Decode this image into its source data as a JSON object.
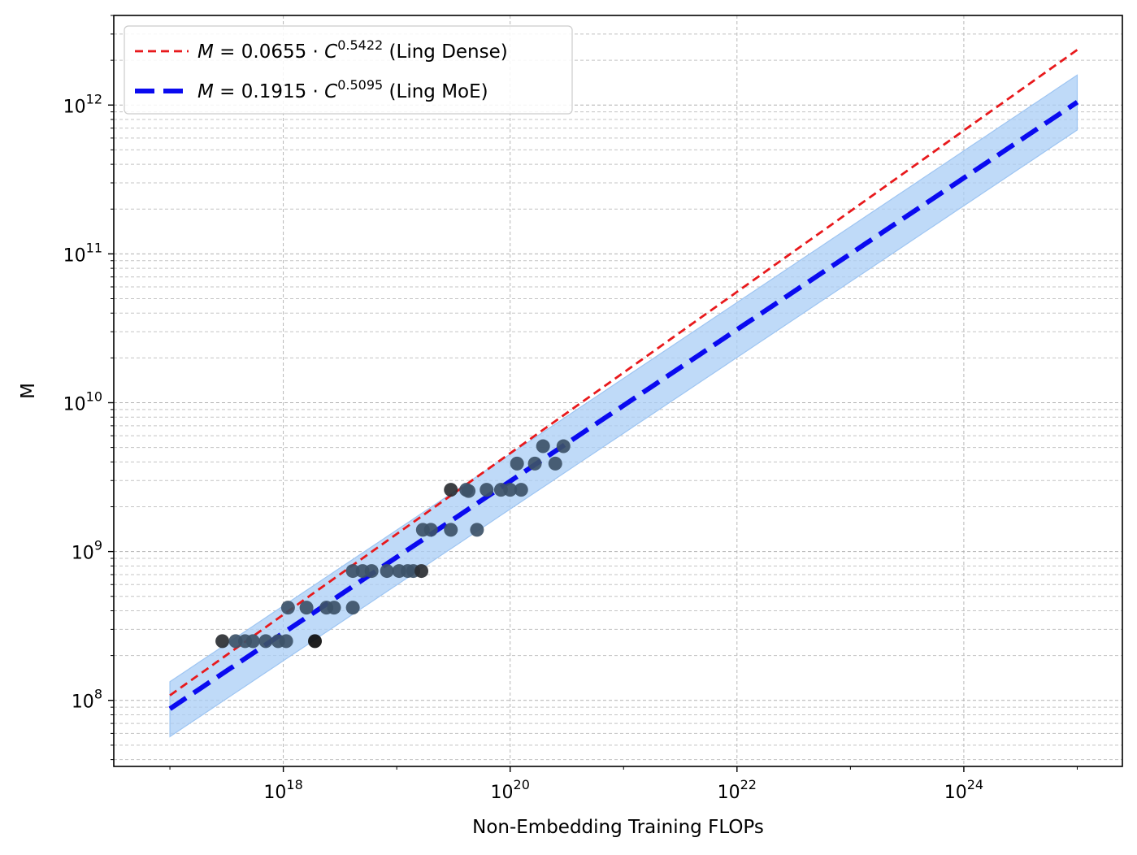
{
  "chart_data": {
    "type": "scatter",
    "xlabel": "Non-Embedding Training FLOPs",
    "ylabel": "M",
    "xscale": "log",
    "yscale": "log",
    "xlim": [
      3.2e+16,
      2.5e+25
    ],
    "ylim": [
      36000000.0,
      4000000000000.0
    ],
    "xticks": [
      {
        "value": 1e+18,
        "base": "10",
        "exp": "18"
      },
      {
        "value": 1e+20,
        "base": "10",
        "exp": "20"
      },
      {
        "value": 1e+22,
        "base": "10",
        "exp": "22"
      },
      {
        "value": 1e+24,
        "base": "10",
        "exp": "24"
      }
    ],
    "yticks": [
      {
        "value": 100000000.0,
        "base": "10",
        "exp": "8"
      },
      {
        "value": 1000000000.0,
        "base": "10",
        "exp": "9"
      },
      {
        "value": 10000000000.0,
        "base": "10",
        "exp": "10"
      },
      {
        "value": 100000000000.0,
        "base": "10",
        "exp": "11"
      },
      {
        "value": 1000000000000.0,
        "base": "10",
        "exp": "12"
      }
    ],
    "grid": true,
    "legend_position": "top-left",
    "series": [
      {
        "kind": "line",
        "name": "M = 0.0655 · C^0.5422 (Ling Dense)",
        "legend": {
          "lhs": "M",
          "eq": " = 0.0655 · ",
          "var": "C",
          "exp": "0.5422",
          "suffix": " (Ling Dense)"
        },
        "coef": 0.0655,
        "exponent": 0.5422,
        "x_range": [
          1e+17,
          1e+25
        ],
        "color": "#e8191c",
        "style": "dashed"
      },
      {
        "kind": "line",
        "name": "M = 0.1915 · C^0.5095 (Ling MoE)",
        "legend": {
          "lhs": "M",
          "eq": " = 0.1915 · ",
          "var": "C",
          "exp": "0.5095",
          "suffix": " (Ling MoE)"
        },
        "coef": 0.1915,
        "exponent": 0.5095,
        "x_range": [
          1e+17,
          1e+25
        ],
        "color": "#0a0af0",
        "style": "dashed-thick",
        "band": {
          "lower_factor": 0.65,
          "upper_factor": 1.52,
          "color": "#a9cdf5"
        }
      }
    ],
    "points": [
      {
        "x": 2.9e+17,
        "y": 250000000.0,
        "color": "#2b2f33"
      },
      {
        "x": 3.8e+17,
        "y": 250000000.0,
        "color": "#3d5268"
      },
      {
        "x": 4.6e+17,
        "y": 250000000.0,
        "color": "#3d5268"
      },
      {
        "x": 5.4e+17,
        "y": 250000000.0,
        "color": "#3d5268"
      },
      {
        "x": 7e+17,
        "y": 250000000.0,
        "color": "#3d5268"
      },
      {
        "x": 9e+17,
        "y": 250000000.0,
        "color": "#3d5268"
      },
      {
        "x": 1.06e+18,
        "y": 250000000.0,
        "color": "#3d5268"
      },
      {
        "x": 1.9e+18,
        "y": 250000000.0,
        "color": "#0c0c0c"
      },
      {
        "x": 1.1e+18,
        "y": 420000000.0,
        "color": "#3d5268"
      },
      {
        "x": 1.6e+18,
        "y": 420000000.0,
        "color": "#3d5268"
      },
      {
        "x": 2.4e+18,
        "y": 420000000.0,
        "color": "#3d5268"
      },
      {
        "x": 2.8e+18,
        "y": 420000000.0,
        "color": "#3d5268"
      },
      {
        "x": 4.1e+18,
        "y": 420000000.0,
        "color": "#3d5268"
      },
      {
        "x": 4.1e+18,
        "y": 740000000.0,
        "color": "#3d5268"
      },
      {
        "x": 5e+18,
        "y": 740000000.0,
        "color": "#3d5268"
      },
      {
        "x": 6e+18,
        "y": 740000000.0,
        "color": "#3d5268"
      },
      {
        "x": 8.2e+18,
        "y": 740000000.0,
        "color": "#3d5268"
      },
      {
        "x": 1.05e+19,
        "y": 740000000.0,
        "color": "#3d5268"
      },
      {
        "x": 1.25e+19,
        "y": 740000000.0,
        "color": "#3d5268"
      },
      {
        "x": 1.4e+19,
        "y": 740000000.0,
        "color": "#3d5268"
      },
      {
        "x": 1.65e+19,
        "y": 740000000.0,
        "color": "#2b2f33"
      },
      {
        "x": 1.7e+19,
        "y": 1400000000.0,
        "color": "#3d5268"
      },
      {
        "x": 2e+19,
        "y": 1400000000.0,
        "color": "#3d5268"
      },
      {
        "x": 3e+19,
        "y": 1400000000.0,
        "color": "#3d5268"
      },
      {
        "x": 5.1e+19,
        "y": 1400000000.0,
        "color": "#3d5268"
      },
      {
        "x": 3e+19,
        "y": 2600000000.0,
        "color": "#2b2f33"
      },
      {
        "x": 4.1e+19,
        "y": 2600000000.0,
        "color": "#3d5268"
      },
      {
        "x": 4.3e+19,
        "y": 2550000000.0,
        "color": "#3d5268"
      },
      {
        "x": 6.2e+19,
        "y": 2600000000.0,
        "color": "#3d5268"
      },
      {
        "x": 8.3e+19,
        "y": 2600000000.0,
        "color": "#3d5268"
      },
      {
        "x": 1e+20,
        "y": 2600000000.0,
        "color": "#3d5268"
      },
      {
        "x": 1.25e+20,
        "y": 2600000000.0,
        "color": "#3d5268"
      },
      {
        "x": 1.15e+20,
        "y": 3900000000.0,
        "color": "#3d5268"
      },
      {
        "x": 1.65e+20,
        "y": 3900000000.0,
        "color": "#3d5268"
      },
      {
        "x": 1.95e+20,
        "y": 5100000000.0,
        "color": "#3d5268"
      },
      {
        "x": 2.5e+20,
        "y": 3900000000.0,
        "color": "#3d5268"
      },
      {
        "x": 2.95e+20,
        "y": 5100000000.0,
        "color": "#3d5268"
      }
    ]
  }
}
